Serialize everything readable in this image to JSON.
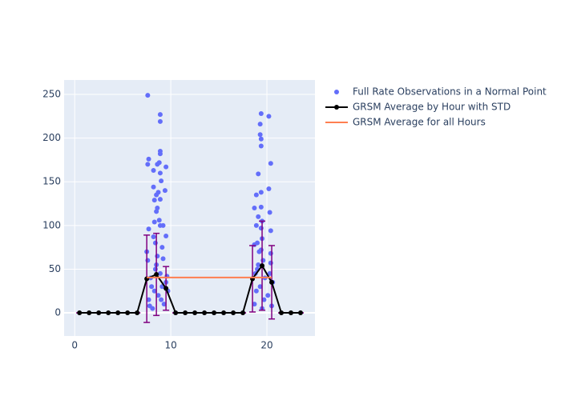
{
  "chart_data": {
    "type": "scatter",
    "xlim": [
      -1.1,
      25
    ],
    "xticks": [
      0,
      10,
      20
    ],
    "ylim": [
      -26.5,
      266.5
    ],
    "yticks": [
      0,
      50,
      100,
      150,
      200,
      250
    ],
    "grid": true,
    "legend": "outside right",
    "series": [
      {
        "name": "Full Rate Observations in a Normal Point",
        "type": "scatter",
        "color": "#636efa",
        "x": [
          7.6,
          8.9,
          8.9,
          7.7,
          7.6,
          8.8,
          8.6,
          9.5,
          8.2,
          8.9,
          8.9,
          8.9,
          9,
          8.2,
          9.4,
          8.7,
          8.5,
          8.3,
          8.9,
          8.6,
          8.5,
          8.3,
          8.8,
          9.2,
          8.9,
          7.7,
          9.5,
          8.2,
          9.1,
          8.4,
          7.5,
          7.6,
          8.6,
          9.2,
          9.6,
          8.5,
          7.9,
          8.0,
          8.3,
          8.7,
          9.0,
          9.3,
          7.8,
          8.1,
          9.5,
          9.7,
          8.9,
          8.4,
          7.7,
          9.1,
          19.4,
          20.2,
          19.3,
          19.3,
          19.4,
          19.4,
          20.4,
          19.1,
          19.4,
          20.2,
          18.9,
          18.7,
          19.4,
          20.3,
          19.1,
          19.5,
          18.9,
          20.4,
          19.4,
          19.5,
          19,
          18.7,
          19.4,
          19.2,
          20.4,
          19.6,
          20.4,
          19.1,
          18.8,
          19.8,
          20.6,
          19.3,
          18.9,
          20.1,
          19.7,
          18.7,
          20.5,
          19.5,
          19.0,
          20.3
        ],
        "values": [
          249,
          227,
          219,
          176,
          170,
          172,
          170,
          167,
          163,
          160,
          185,
          182,
          151,
          144,
          140,
          138,
          135,
          129,
          130,
          120,
          116,
          104,
          106,
          100,
          100,
          96,
          88,
          87,
          75,
          80,
          70,
          60,
          65,
          62,
          42,
          55,
          40,
          30,
          25,
          20,
          15,
          10,
          8,
          5,
          35,
          25,
          45,
          50,
          15,
          30,
          228,
          225,
          216,
          204,
          199,
          191,
          171,
          159,
          138,
          142,
          135,
          120,
          121,
          115,
          110,
          105,
          100,
          94,
          97,
          85,
          80,
          78,
          72,
          70,
          68,
          60,
          57,
          55,
          45,
          40,
          35,
          30,
          25,
          20,
          15,
          10,
          8,
          5,
          50,
          45
        ]
      },
      {
        "name": "GRSM Average by Hour with STD",
        "type": "line",
        "color": "#000000",
        "error_color": "#800080",
        "x": [
          0.5,
          1.5,
          2.5,
          3.5,
          4.5,
          5.5,
          6.5,
          7.5,
          8.5,
          9.5,
          10.5,
          11.5,
          12.5,
          13.5,
          14.5,
          15.5,
          16.5,
          17.5,
          18.5,
          19.5,
          20.5,
          21.5,
          22.5,
          23.5
        ],
        "values": [
          0,
          0,
          0,
          0,
          0,
          0,
          0,
          39,
          44,
          28,
          0,
          0,
          0,
          0,
          0,
          0,
          0,
          0,
          39,
          54,
          35,
          0,
          0,
          0
        ],
        "errors": [
          0,
          0,
          0,
          0,
          0,
          0,
          0,
          50,
          47,
          25,
          0,
          0,
          0,
          0,
          0,
          0,
          0,
          0,
          38,
          51,
          42,
          0,
          0,
          0
        ]
      },
      {
        "name": "GRSM Average for all Hours",
        "type": "line",
        "color": "#ff7f50",
        "x": [
          7.5,
          20.5
        ],
        "values": [
          40.5,
          40.5
        ]
      }
    ]
  }
}
